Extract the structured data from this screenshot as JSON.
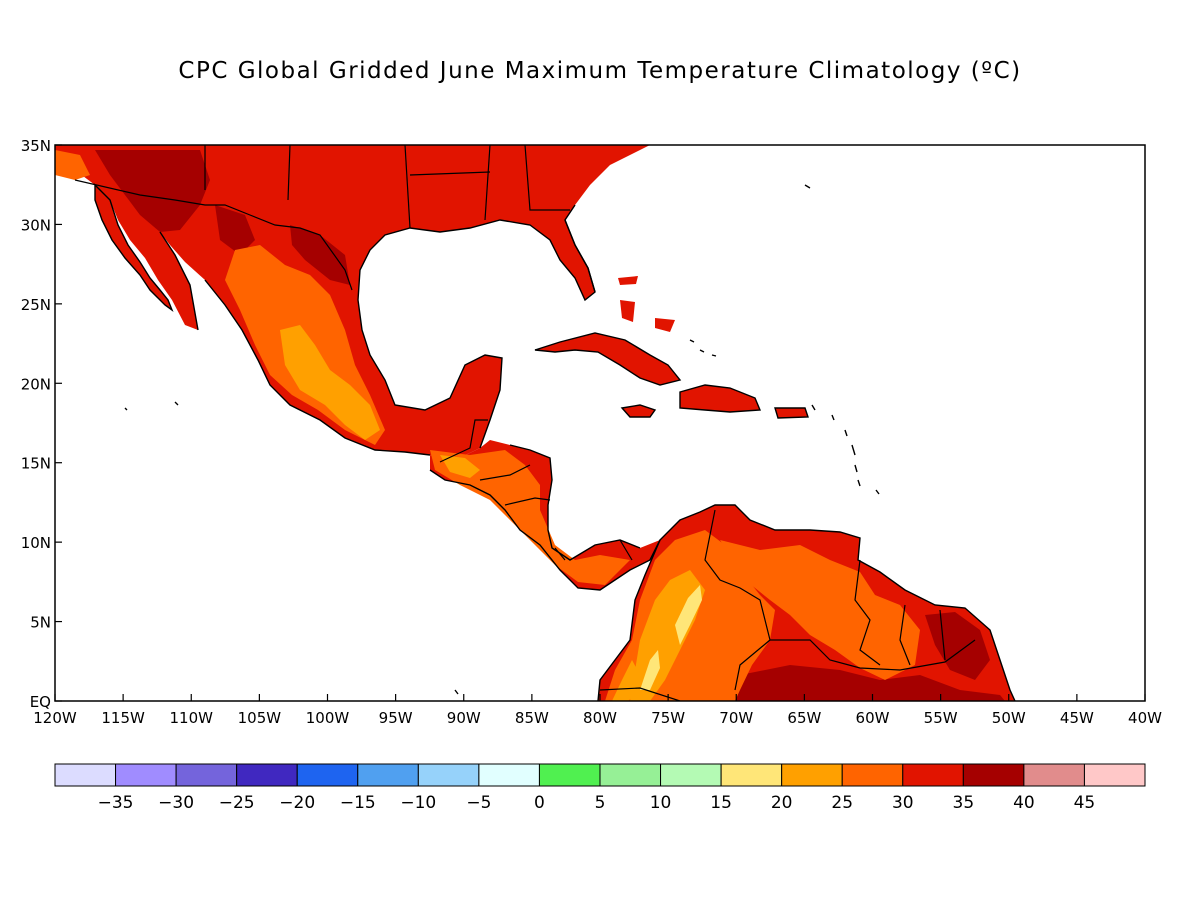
{
  "title": "CPC Global Gridded June Maximum Temperature Climatology (ºC)",
  "map": {
    "lon_range": [
      -120,
      -40
    ],
    "lat_range": [
      0,
      35
    ],
    "lon_ticks": [
      {
        "value": -120,
        "label": "120W"
      },
      {
        "value": -115,
        "label": "115W"
      },
      {
        "value": -110,
        "label": "110W"
      },
      {
        "value": -105,
        "label": "105W"
      },
      {
        "value": -100,
        "label": "100W"
      },
      {
        "value": -95,
        "label": "95W"
      },
      {
        "value": -90,
        "label": "90W"
      },
      {
        "value": -85,
        "label": "85W"
      },
      {
        "value": -80,
        "label": "80W"
      },
      {
        "value": -75,
        "label": "75W"
      },
      {
        "value": -70,
        "label": "70W"
      },
      {
        "value": -65,
        "label": "65W"
      },
      {
        "value": -60,
        "label": "60W"
      },
      {
        "value": -55,
        "label": "55W"
      },
      {
        "value": -50,
        "label": "50W"
      },
      {
        "value": -45,
        "label": "45W"
      },
      {
        "value": -40,
        "label": "40W"
      }
    ],
    "lat_ticks": [
      {
        "value": 0,
        "label": "EQ"
      },
      {
        "value": 5,
        "label": "5N"
      },
      {
        "value": 10,
        "label": "10N"
      },
      {
        "value": 15,
        "label": "15N"
      },
      {
        "value": 20,
        "label": "20N"
      },
      {
        "value": 25,
        "label": "25N"
      },
      {
        "value": 30,
        "label": "30N"
      },
      {
        "value": 35,
        "label": "35N"
      }
    ]
  },
  "colorbar": {
    "colors": [
      "#dcdcff",
      "#a08cff",
      "#7464dc",
      "#4028c0",
      "#1e64f0",
      "#50a0f0",
      "#96d2fa",
      "#e1ffff",
      "#50f050",
      "#96f096",
      "#b4fab4",
      "#ffe678",
      "#ffa000",
      "#ff6400",
      "#e11400",
      "#a50000",
      "#e18c8c",
      "#ffc8c8"
    ],
    "labels": [
      "-35",
      "-30",
      "-25",
      "-20",
      "-15",
      "-10",
      "-5",
      "0",
      "5",
      "10",
      "15",
      "20",
      "25",
      "30",
      "35",
      "40",
      "45"
    ]
  },
  "colors": {
    "c25_30": "#ff6400",
    "c30_35": "#e11400",
    "c35_40": "#a50000",
    "c20_25": "#ffa000",
    "c15_20": "#ffe678"
  }
}
